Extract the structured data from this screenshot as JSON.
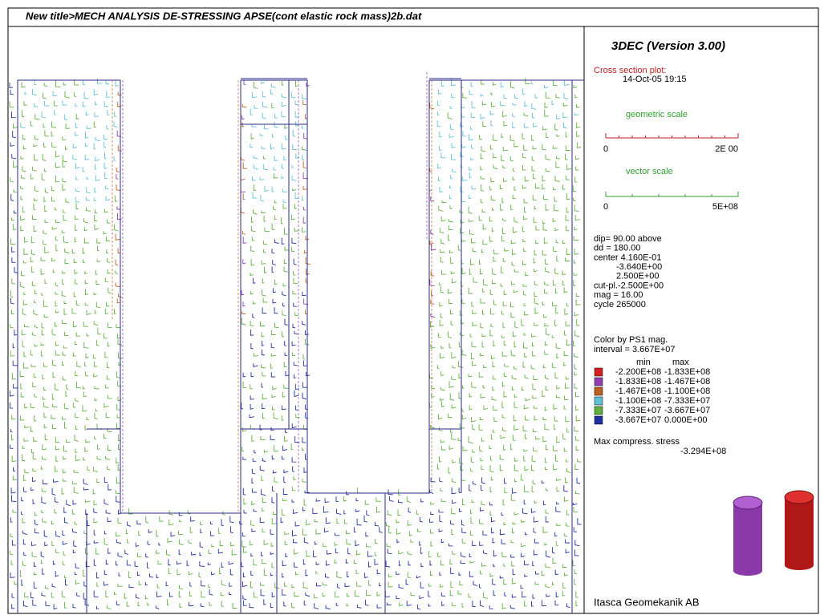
{
  "header": {
    "title": "New title>MECH ANALYSIS DE-STRESSING APSE(cont elastic rock mass)2b.dat"
  },
  "panel": {
    "program": "3DEC (Version 3.00)",
    "plot_type": "Cross section plot:",
    "date": "14-Oct-05  19:15",
    "geometric_scale": {
      "label": "geometric scale",
      "min": "0",
      "max": "2E 00"
    },
    "vector_scale": {
      "label": "vector scale",
      "min": "0",
      "max": "5E+08"
    },
    "params": [
      "dip=   90.00 above",
      "dd =  180.00",
      "center  4.160E-01",
      "-3.640E+00",
      "2.500E+00",
      "cut-pl.-2.500E+00",
      "mag =     16.00",
      "cycle   265000"
    ],
    "color_by": "Color by PS1 mag.",
    "interval": "interval =  3.667E+07",
    "min_header": "min",
    "max_header": "max",
    "legend": [
      {
        "color": "#d42020",
        "min": "-2.200E+08",
        "max": "-1.833E+08"
      },
      {
        "color": "#9040b0",
        "min": "-1.833E+08",
        "max": "-1.467E+08"
      },
      {
        "color": "#c06020",
        "min": "-1.467E+08",
        "max": "-1.100E+08"
      },
      {
        "color": "#60c0d8",
        "min": "-1.100E+08",
        "max": "-7.333E+07"
      },
      {
        "color": "#60b040",
        "min": "-7.333E+07",
        "max": "-3.667E+07"
      },
      {
        "color": "#2030a0",
        "min": "-3.667E+07",
        "max": "0.000E+00"
      }
    ],
    "max_stress_label": "Max compress. stress",
    "max_stress": "-3.294E+08",
    "company": "Itasca Geomekanik AB"
  }
}
